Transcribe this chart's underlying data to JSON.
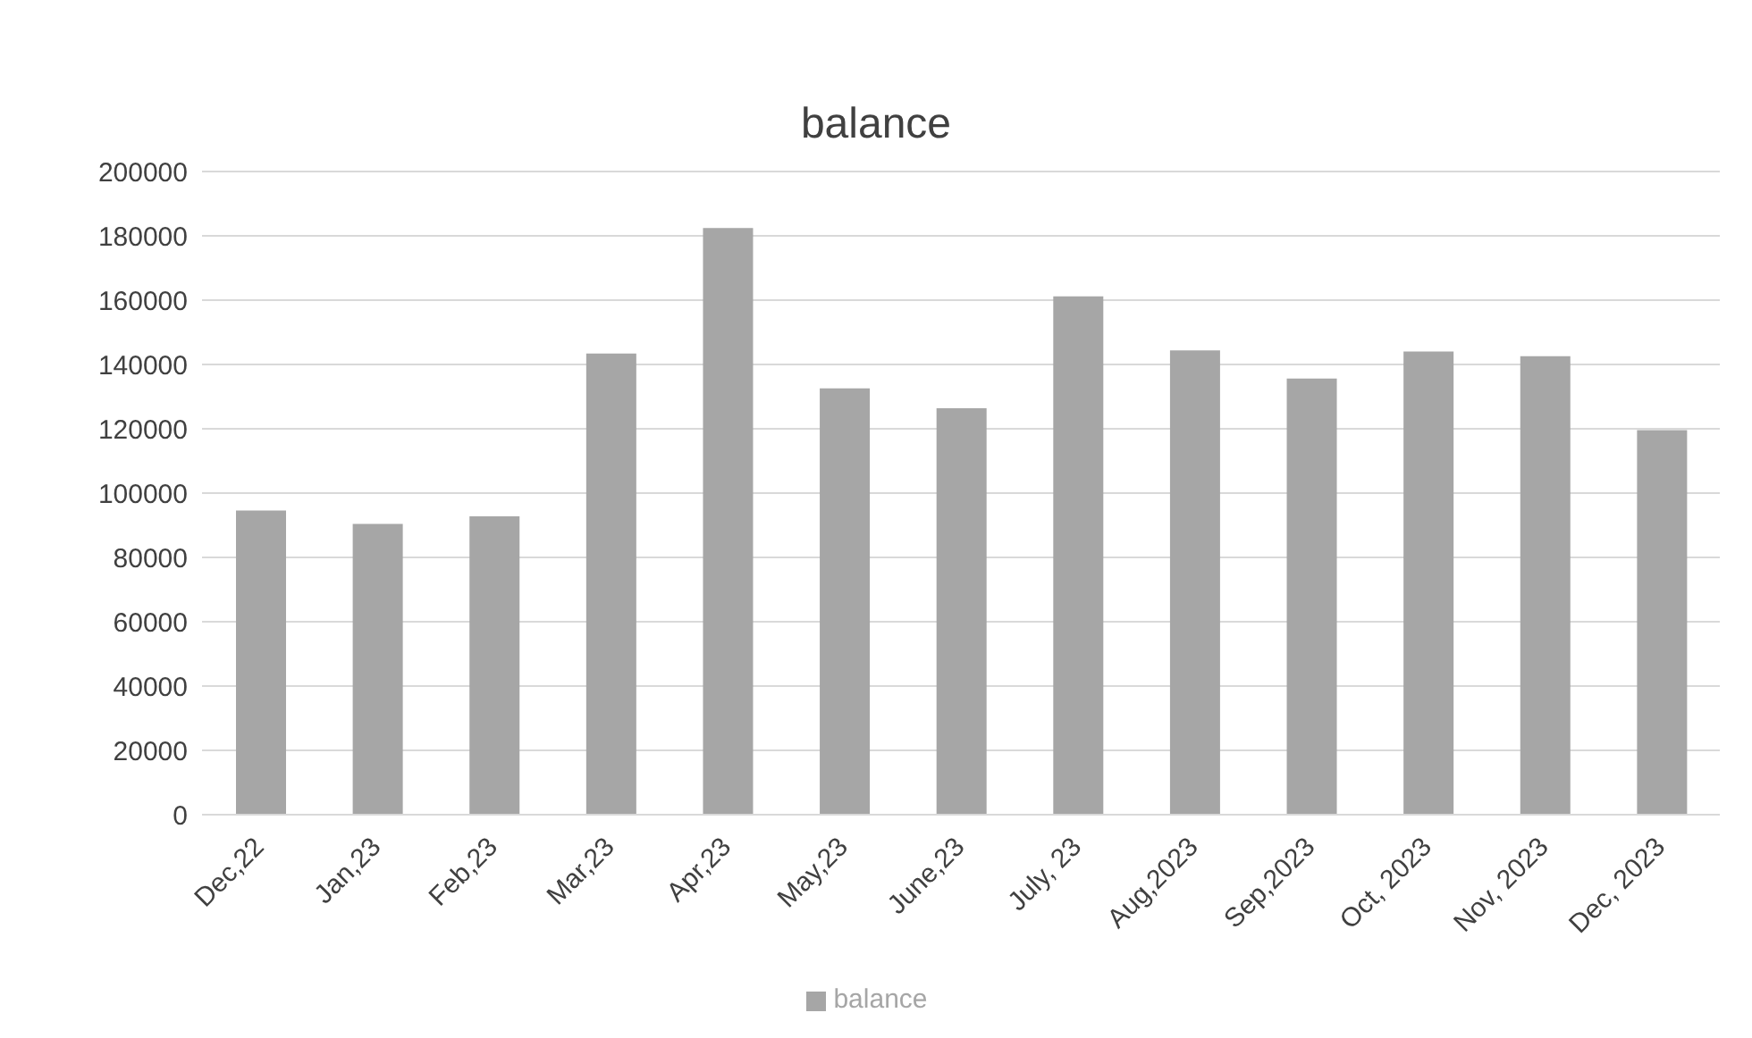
{
  "chart_data": {
    "type": "bar",
    "title": "balance",
    "categories": [
      "Dec,22",
      "Jan,23",
      "Feb,23",
      "Mar,23",
      "Apr,23",
      "May,23",
      "June,23",
      "July, 23",
      "Aug,2023",
      "Sep,2023",
      "Oct, 2023",
      "Nov, 2023",
      "Dec, 2023"
    ],
    "series": [
      {
        "name": "balance",
        "color": "#a6a6a6",
        "values": [
          94600,
          90400,
          92800,
          143400,
          182400,
          132600,
          126400,
          161200,
          144400,
          135600,
          144000,
          142600,
          119600
        ]
      }
    ],
    "ylim": [
      0,
      200000
    ],
    "yticks": [
      0,
      20000,
      40000,
      60000,
      80000,
      100000,
      120000,
      140000,
      160000,
      180000,
      200000
    ],
    "grid": "y",
    "legend": "bottom"
  }
}
